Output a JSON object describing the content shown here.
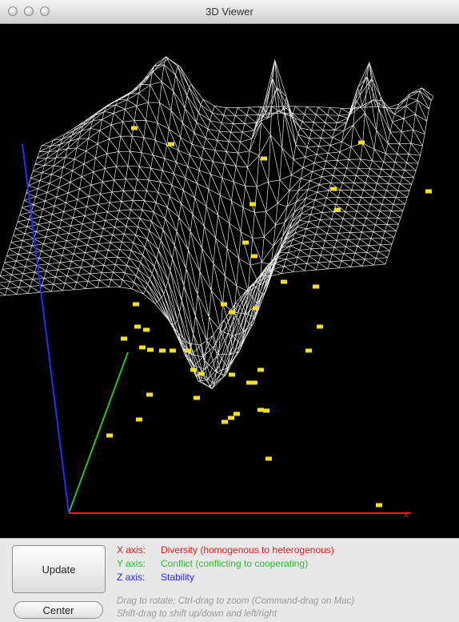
{
  "window": {
    "title": "3D Viewer",
    "traffic_lights": [
      "close-button",
      "minimize-button",
      "zoom-button"
    ]
  },
  "viewer": {
    "background": "#000000",
    "mesh_color": "#ffffff",
    "point_color": "#f5e021",
    "axis_colors": {
      "x": "#e02020",
      "y": "#2bbf2b",
      "z": "#2a2aff"
    },
    "x_axis_end_label": "x"
  },
  "controls": {
    "update_label": "Update",
    "center_label": "Center"
  },
  "legend": [
    {
      "axis": "X axis:",
      "description": "Diversity (homogenous to heterogenous)",
      "color": "#e02020"
    },
    {
      "axis": "Y axis:",
      "description": "Conflict (conflicting to cooperating)",
      "color": "#2bbf2b"
    },
    {
      "axis": "Z axis:",
      "description": "Stability",
      "color": "#2a2aff"
    }
  ],
  "hints": [
    "Drag to rotate; Ctrl-drag to zoom (Command-drag on Mac)",
    "Shift-drag to shift up/down and left/right"
  ]
}
